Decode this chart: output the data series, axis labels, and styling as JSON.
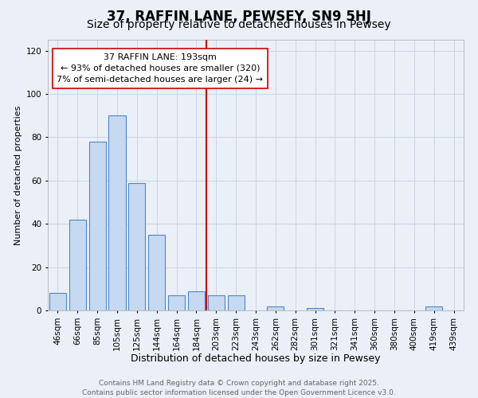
{
  "title": "37, RAFFIN LANE, PEWSEY, SN9 5HJ",
  "subtitle": "Size of property relative to detached houses in Pewsey",
  "xlabel": "Distribution of detached houses by size in Pewsey",
  "ylabel": "Number of detached properties",
  "categories": [
    "46sqm",
    "66sqm",
    "85sqm",
    "105sqm",
    "125sqm",
    "144sqm",
    "164sqm",
    "184sqm",
    "203sqm",
    "223sqm",
    "243sqm",
    "262sqm",
    "282sqm",
    "301sqm",
    "321sqm",
    "341sqm",
    "360sqm",
    "380sqm",
    "400sqm",
    "419sqm",
    "439sqm"
  ],
  "values": [
    8,
    42,
    78,
    90,
    59,
    35,
    7,
    9,
    7,
    7,
    0,
    2,
    0,
    1,
    0,
    0,
    0,
    0,
    0,
    2,
    0
  ],
  "bar_color": "#c6d9f1",
  "bar_edge_color": "#4e86c8",
  "vline_index": 7.5,
  "vline_color": "#cc0000",
  "annotation_text": "37 RAFFIN LANE: 193sqm\n← 93% of detached houses are smaller (320)\n7% of semi-detached houses are larger (24) →",
  "ylim": [
    0,
    125
  ],
  "yticks": [
    0,
    20,
    40,
    60,
    80,
    100,
    120
  ],
  "grid_color": "#cdd5e3",
  "background_color": "#eaeff8",
  "footer_line1": "Contains HM Land Registry data © Crown copyright and database right 2025.",
  "footer_line2": "Contains public sector information licensed under the Open Government Licence v3.0.",
  "title_fontsize": 12,
  "subtitle_fontsize": 10,
  "xlabel_fontsize": 9,
  "ylabel_fontsize": 8,
  "tick_fontsize": 7.5,
  "annotation_fontsize": 8,
  "footer_fontsize": 6.5
}
